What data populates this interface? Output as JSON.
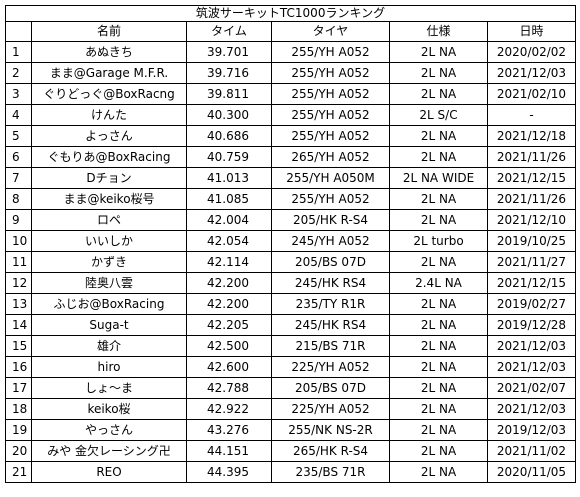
{
  "title": "筑波サーキットTC1000ランキング",
  "columns": [
    "",
    "名前",
    "タイム",
    "タイヤ",
    "仕様",
    "日時"
  ],
  "rows": [
    [
      "1",
      "あぬきち",
      "39.701",
      "255/YH A052",
      "2L NA",
      "2020/02/02"
    ],
    [
      "2",
      "まま@Garage M.F.R.",
      "39.716",
      "255/YH A052",
      "2L NA",
      "2021/12/03"
    ],
    [
      "3",
      "ぐりどっぐ@BoxRacng",
      "39.811",
      "255/YH A052",
      "2L NA",
      "2021/02/10"
    ],
    [
      "4",
      "けんた",
      "40.300",
      "255/YH A052",
      "2L S/C",
      "-"
    ],
    [
      "5",
      "よっさん",
      "40.686",
      "255/YH A052",
      "2L NA",
      "2021/12/18"
    ],
    [
      "6",
      "ぐもりあ@BoxRacing",
      "40.759",
      "265/YH A052",
      "2L NA",
      "2021/11/26"
    ],
    [
      "7",
      "Dチョン",
      "41.013",
      "255/YH A050M",
      "2L NA WIDE",
      "2021/12/15"
    ],
    [
      "8",
      "まま@keiko桜号",
      "41.085",
      "255/YH A052",
      "2L NA",
      "2021/11/26"
    ],
    [
      "9",
      "ロペ",
      "42.004",
      "205/HK R-S4",
      "2L NA",
      "2021/12/10"
    ],
    [
      "10",
      "いいしか",
      "42.054",
      "245/YH A052",
      "2L turbo",
      "2019/10/25"
    ],
    [
      "11",
      "かずき",
      "42.114",
      "205/BS 07D",
      "2L NA",
      "2021/11/27"
    ],
    [
      "12",
      "陸奥八雲",
      "42.200",
      "245/HK RS4",
      "2.4L NA",
      "2021/12/15"
    ],
    [
      "13",
      "ふじお@BoxRacing",
      "42.200",
      "235/TY R1R",
      "2L NA",
      "2019/02/27"
    ],
    [
      "14",
      "Suga-t",
      "42.205",
      "245/HK RS4",
      "2L NA",
      "2019/12/28"
    ],
    [
      "15",
      "雄介",
      "42.500",
      "215/BS 71R",
      "2L NA",
      "2021/12/03"
    ],
    [
      "16",
      "hiro",
      "42.600",
      "225/YH A052",
      "2L NA",
      "2021/12/03"
    ],
    [
      "17",
      "しょ～ま",
      "42.788",
      "205/BS 07D",
      "2L NA",
      "2021/02/07"
    ],
    [
      "18",
      "keiko桜",
      "42.922",
      "225/YH A052",
      "2L NA",
      "2021/12/03"
    ],
    [
      "19",
      "やっさん",
      "43.276",
      "255/NK NS-2R",
      "2L NA",
      "2019/12/03"
    ],
    [
      "20",
      "みや 金欠レーシング卍",
      "44.151",
      "265/HK R-S4",
      "2L NA",
      "2021/11/02"
    ],
    [
      "21",
      "REO",
      "44.395",
      "235/BS 71R",
      "2L NA",
      "2020/11/05"
    ]
  ]
}
